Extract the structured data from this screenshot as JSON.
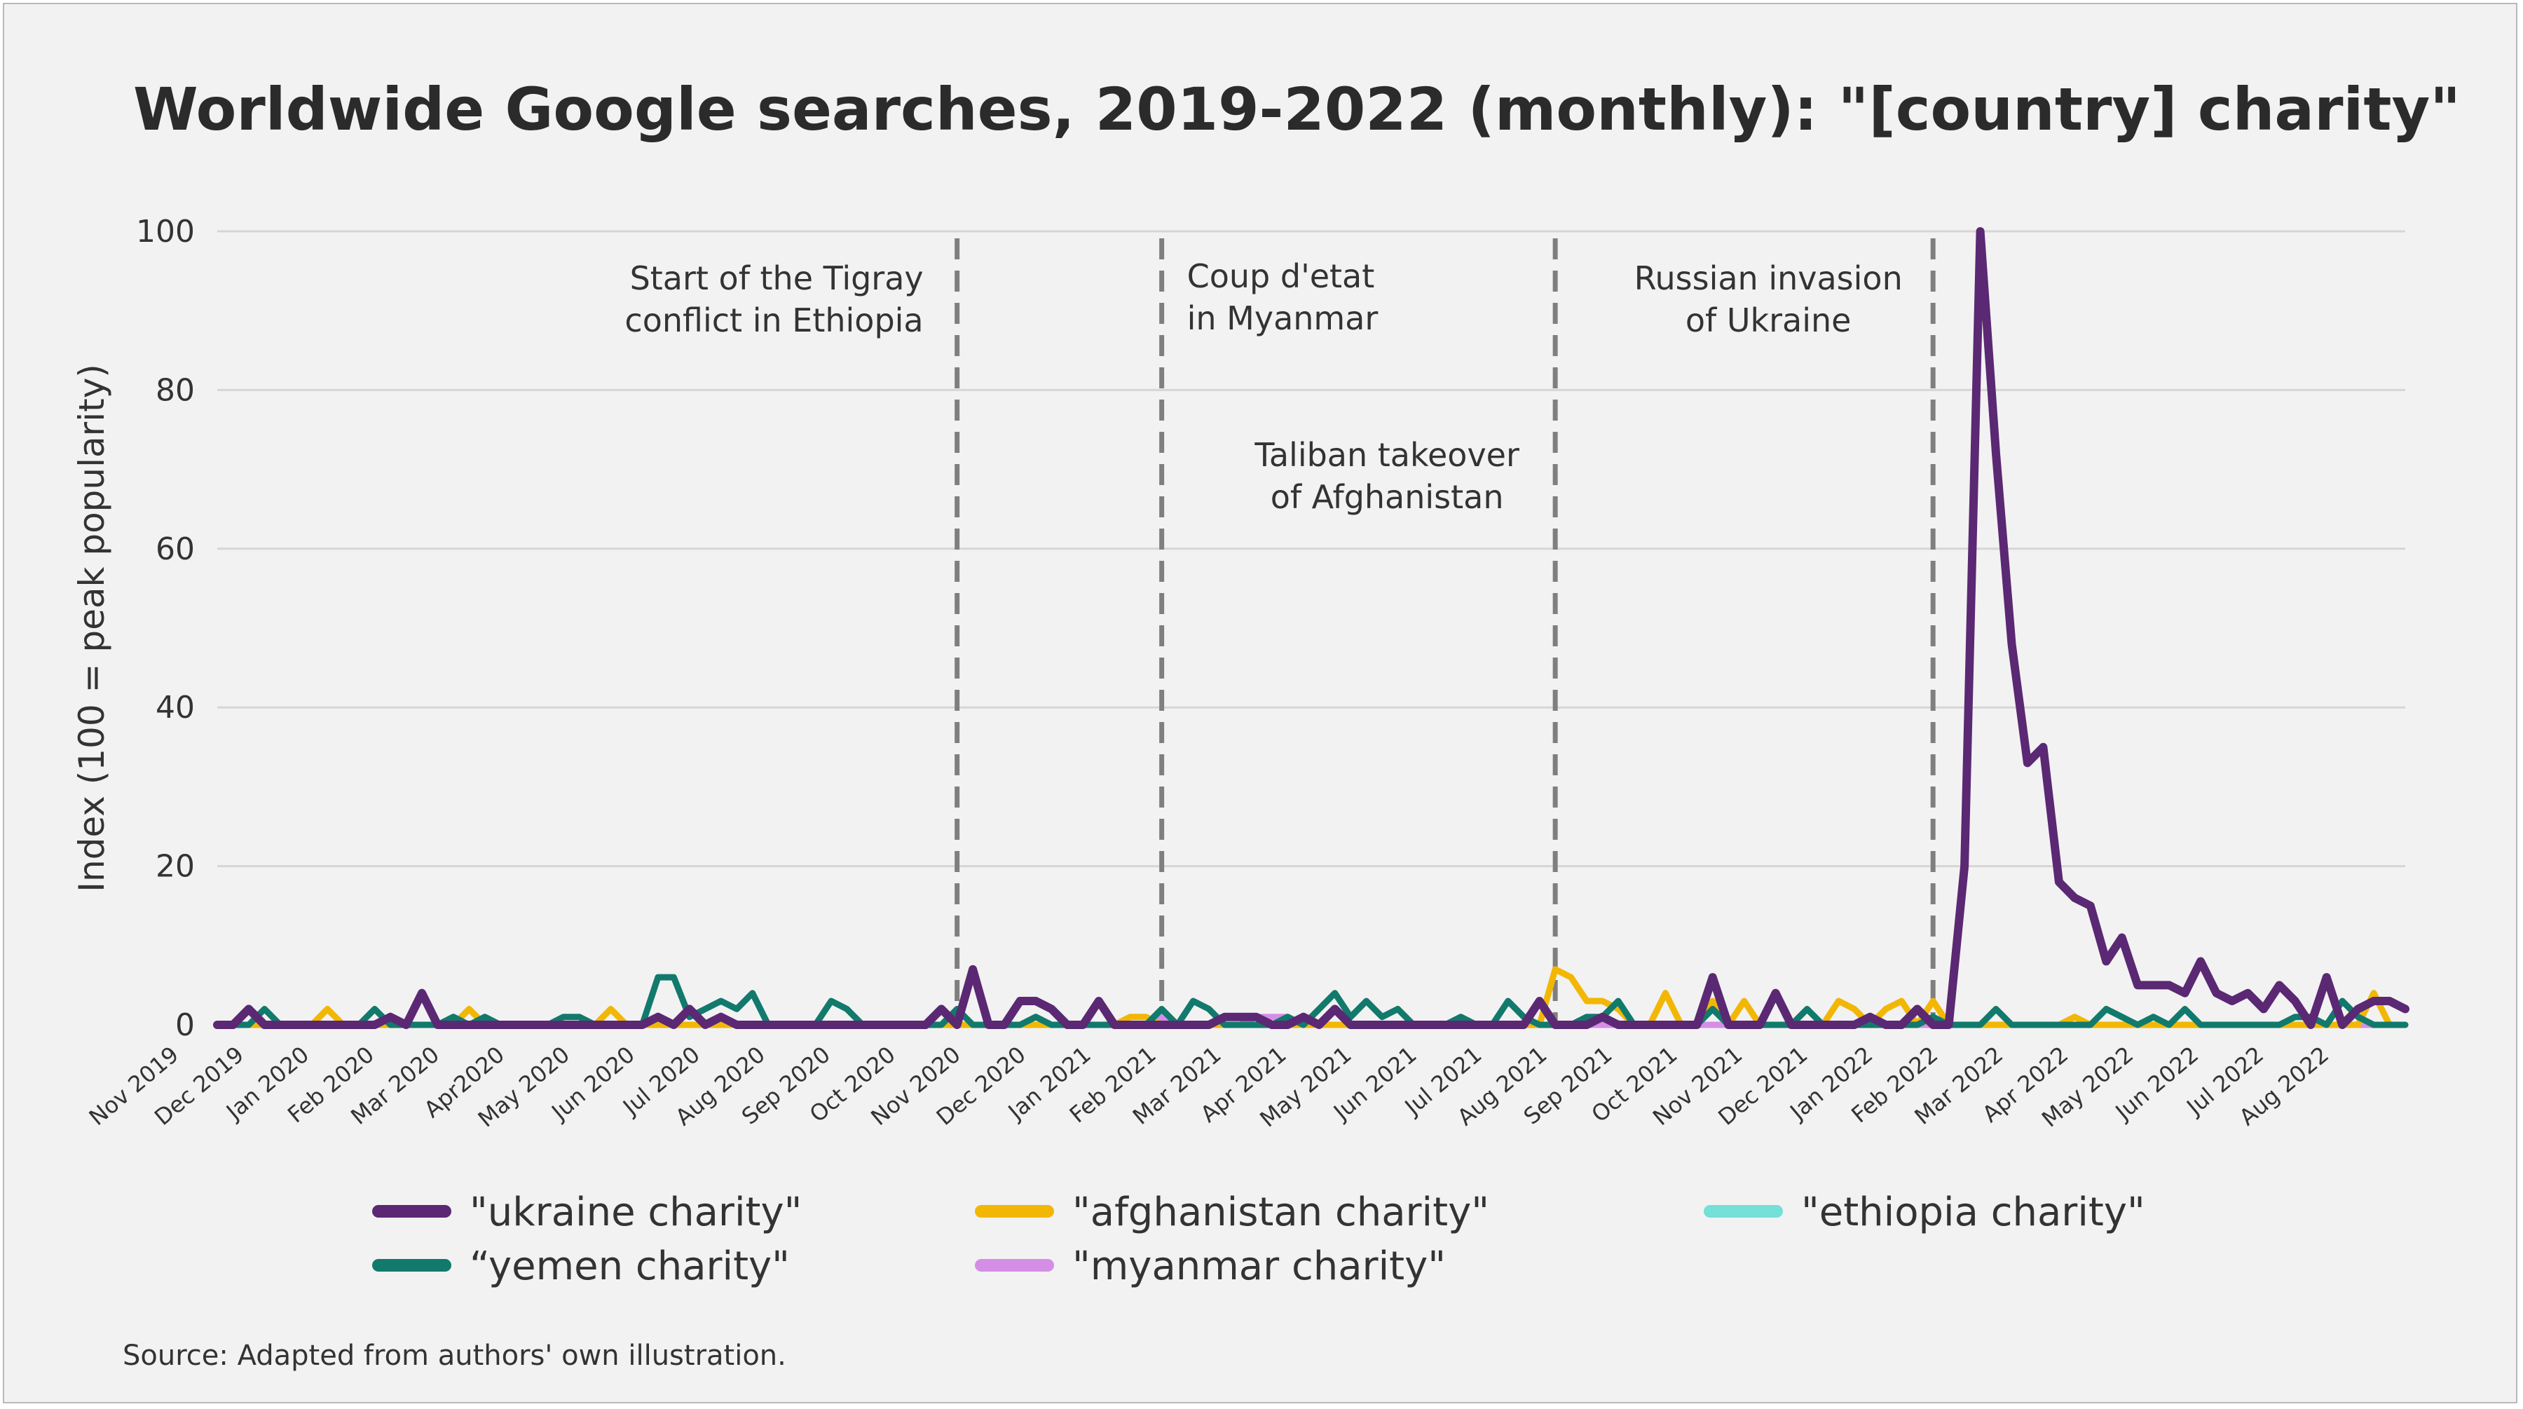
{
  "chart_data": {
    "type": "line",
    "title": "Worldwide Google searches, 2019-2022 (monthly): \"[country] charity\"",
    "ylabel": "Index (100 = peak popularity)",
    "xlabel": "",
    "ylim": [
      0,
      100
    ],
    "yticks": [
      0,
      20,
      40,
      60,
      80,
      100
    ],
    "grid": true,
    "legend_position": "bottom",
    "xtick_labels": [
      "Nov 2019",
      "Dec 2019",
      "Jan 2020",
      "Feb 2020",
      "Mar 2020",
      "Apr2020",
      "May 2020",
      "Jun 2020",
      "Jul 2020",
      "Aug 2020",
      "Sep 2020",
      "Oct 2020",
      "Nov 2020",
      "Dec 2020",
      "Jan 2021",
      "Feb 2021",
      "Mar 2021",
      "Apr 2021",
      "May 2021",
      "Jun 2021",
      "Jul 2021",
      "Aug 2021",
      "Sep 2021",
      "Oct 2021",
      "Nov 2021",
      "Dec 2021",
      "Jan 2022",
      "Feb 2022",
      "Mar 2022",
      "Apr 2022",
      "May 2022",
      "Jun 2022",
      "Jul 2022",
      "Aug 2022"
    ],
    "annotations": [
      {
        "lines": [
          "Start of the Tigray",
          "conflict in Ethiopia"
        ],
        "at_week": 47
      },
      {
        "lines": [
          "Coup d'etat",
          "in Myanmar"
        ],
        "at_week": 60
      },
      {
        "lines": [
          "Taliban takeover",
          "of Afghanistan"
        ],
        "at_week": 85
      },
      {
        "lines": [
          "Russian invasion",
          "of Ukraine"
        ],
        "at_week": 109
      }
    ],
    "series": [
      {
        "name": "\"ukraine charity\"",
        "color": "#5b2873",
        "values": [
          0,
          0,
          2,
          0,
          0,
          0,
          0,
          0,
          0,
          0,
          0,
          1,
          0,
          4,
          0,
          0,
          0,
          0,
          0,
          0,
          0,
          0,
          0,
          0,
          0,
          0,
          0,
          0,
          1,
          0,
          2,
          0,
          1,
          0,
          0,
          0,
          0,
          0,
          0,
          0,
          0,
          0,
          0,
          0,
          0,
          0,
          2,
          0,
          7,
          0,
          0,
          3,
          3,
          2,
          0,
          0,
          3,
          0,
          0,
          0,
          0,
          0,
          0,
          0,
          1,
          1,
          1,
          0,
          0,
          1,
          0,
          2,
          0,
          0,
          0,
          0,
          0,
          0,
          0,
          0,
          0,
          0,
          0,
          0,
          3,
          0,
          0,
          0,
          1,
          0,
          0,
          0,
          0,
          0,
          0,
          6,
          0,
          0,
          0,
          4,
          0,
          0,
          0,
          0,
          0,
          1,
          0,
          0,
          2,
          0,
          0,
          20,
          100,
          72,
          48,
          33,
          35,
          18,
          16,
          15,
          8,
          11,
          5,
          5,
          5,
          4,
          8,
          4,
          3,
          4,
          2,
          5,
          3,
          0,
          6,
          0,
          2,
          3,
          3,
          2
        ]
      },
      {
        "name": "“yemen charity\"",
        "color": "#117a6c",
        "values": [
          0,
          0,
          0,
          2,
          0,
          0,
          0,
          0,
          0,
          0,
          2,
          0,
          0,
          0,
          0,
          1,
          0,
          1,
          0,
          0,
          0,
          0,
          1,
          1,
          0,
          0,
          0,
          0,
          6,
          6,
          1,
          2,
          3,
          2,
          4,
          0,
          0,
          0,
          0,
          3,
          2,
          0,
          0,
          0,
          0,
          0,
          0,
          2,
          0,
          0,
          0,
          0,
          1,
          0,
          0,
          0,
          0,
          0,
          0,
          0,
          2,
          0,
          3,
          2,
          0,
          0,
          0,
          0,
          1,
          0,
          2,
          4,
          1,
          3,
          1,
          2,
          0,
          0,
          0,
          1,
          0,
          0,
          3,
          1,
          0,
          0,
          0,
          1,
          1,
          3,
          0,
          0,
          0,
          0,
          0,
          2,
          0,
          0,
          0,
          0,
          0,
          2,
          0,
          0,
          0,
          0,
          0,
          0,
          0,
          1,
          0,
          0,
          0,
          2,
          0,
          0,
          0,
          0,
          0,
          0,
          2,
          1,
          0,
          1,
          0,
          2,
          0,
          0,
          0,
          0,
          0,
          0,
          1,
          1,
          0,
          3,
          1,
          0,
          0,
          0
        ]
      },
      {
        "name": "\"afghanistan charity\"",
        "color": "#f2b705",
        "values": [
          0,
          0,
          0,
          0,
          0,
          0,
          0,
          2,
          0,
          0,
          0,
          0,
          0,
          0,
          0,
          0,
          2,
          0,
          0,
          0,
          0,
          0,
          0,
          0,
          0,
          2,
          0,
          0,
          0,
          0,
          0,
          0,
          0,
          0,
          0,
          0,
          0,
          0,
          0,
          0,
          0,
          0,
          0,
          0,
          0,
          0,
          0,
          0,
          0,
          0,
          0,
          0,
          0,
          0,
          0,
          0,
          0,
          0,
          1,
          1,
          0,
          0,
          0,
          0,
          0,
          0,
          0,
          0,
          0,
          0,
          0,
          0,
          0,
          0,
          0,
          0,
          0,
          0,
          0,
          0,
          0,
          0,
          0,
          0,
          0,
          7,
          6,
          3,
          3,
          2,
          0,
          0,
          4,
          0,
          0,
          3,
          0,
          3,
          0,
          0,
          0,
          0,
          0,
          3,
          2,
          0,
          2,
          3,
          0,
          3,
          0,
          0,
          0,
          0,
          0,
          0,
          0,
          0,
          1,
          0,
          0,
          0,
          0,
          0,
          0,
          0,
          0,
          0,
          0,
          0,
          0,
          0,
          0,
          0,
          0,
          0,
          0,
          4,
          0,
          0
        ]
      },
      {
        "name": "\"myanmar charity\"",
        "color": "#d58ee6",
        "values": [
          0,
          0,
          0,
          0,
          0,
          0,
          0,
          0,
          0,
          0,
          0,
          0,
          0,
          0,
          0,
          0,
          0,
          0,
          0,
          0,
          0,
          0,
          0,
          0,
          0,
          0,
          0,
          0,
          0,
          0,
          0,
          0,
          0,
          0,
          0,
          0,
          0,
          0,
          0,
          0,
          0,
          0,
          0,
          0,
          0,
          0,
          0,
          0,
          0,
          0,
          0,
          0,
          0,
          0,
          0,
          0,
          0,
          0,
          0,
          0,
          1,
          0,
          0,
          0,
          0,
          0,
          1,
          1,
          1,
          0,
          0,
          0,
          0,
          0,
          0,
          0,
          0,
          0,
          0,
          0,
          0,
          0,
          0,
          0,
          0,
          0,
          0,
          0,
          0,
          0,
          0,
          0,
          0,
          0,
          0,
          0,
          0,
          0,
          0,
          0,
          0,
          0,
          0,
          0,
          0,
          0,
          0,
          0,
          0,
          0,
          0,
          0,
          0,
          0,
          0,
          0,
          0,
          0,
          0,
          0,
          0,
          0,
          0,
          0,
          0,
          0,
          0,
          0,
          0,
          0,
          0,
          0,
          0,
          0,
          0,
          0,
          0,
          0,
          0,
          0
        ]
      },
      {
        "name": "\"ethiopia charity\"",
        "color": "#74e0d8",
        "values": [
          0,
          0,
          0,
          0,
          0,
          0,
          0,
          0,
          0,
          0,
          0,
          0,
          0,
          0,
          0,
          0,
          0,
          0,
          0,
          0,
          0,
          0,
          0,
          0,
          0,
          0,
          0,
          0,
          0,
          0,
          0,
          0,
          0,
          0,
          0,
          0,
          0,
          0,
          0,
          0,
          0,
          0,
          0,
          0,
          0,
          0,
          0,
          0,
          0,
          0,
          0,
          0,
          0,
          0,
          0,
          0,
          0,
          0,
          0,
          0,
          0,
          0,
          0,
          0,
          0,
          0,
          0,
          0,
          0,
          0,
          0,
          0,
          0,
          0,
          0,
          0,
          0,
          0,
          0,
          0,
          0,
          0,
          0,
          0,
          0,
          0,
          0,
          0,
          0,
          0,
          0,
          0,
          0,
          0,
          0,
          0,
          0,
          0,
          0,
          0,
          0,
          0,
          0,
          0,
          0,
          0,
          0,
          0,
          0,
          0,
          0,
          0,
          0,
          0,
          0,
          0,
          0,
          0,
          0,
          0,
          0,
          0,
          0,
          0,
          0,
          0,
          0,
          0,
          0,
          0,
          0,
          0,
          0,
          0,
          0,
          0,
          0,
          0,
          0,
          0
        ]
      }
    ]
  },
  "legend_order": [
    0,
    2,
    4,
    1,
    3
  ],
  "source": "Source: Adapted from authors' own illustration."
}
